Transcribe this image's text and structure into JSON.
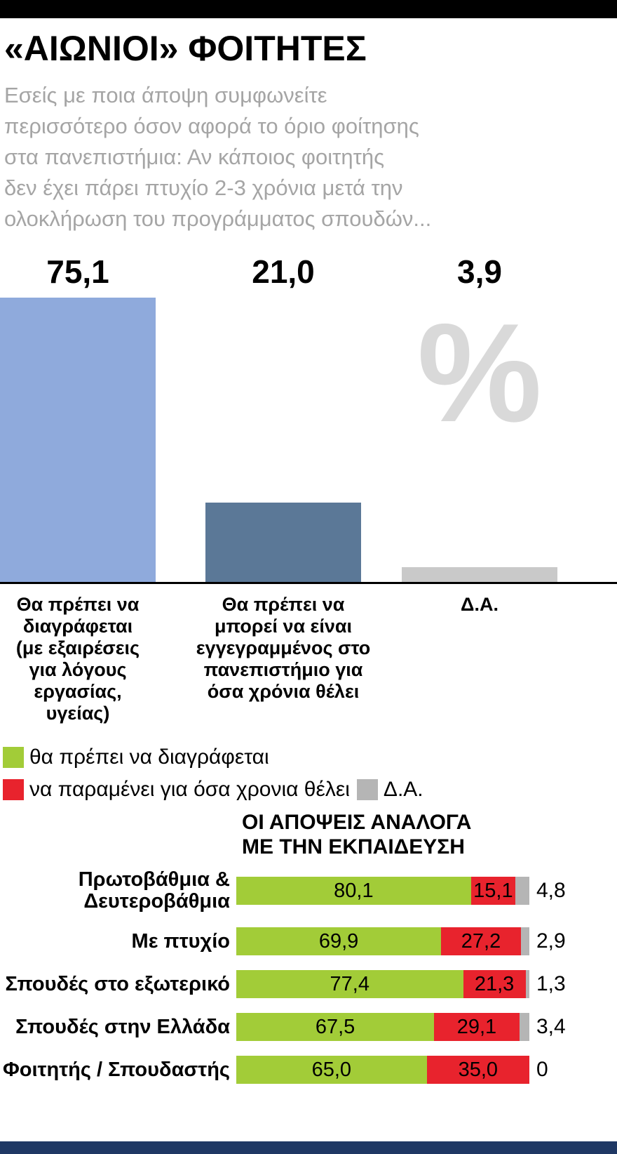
{
  "header": {
    "title": "«ΑΙΩΝΙΟΙ» ΦΟΙΤΗΤΕΣ",
    "question_lines": [
      "Εσείς με ποια άποψη συμφωνείτε",
      "περισσότερο όσον αφορά το όριο φοίτησης",
      "στα πανεπιστήμια: Αν κάποιος φοιτητής",
      "δεν έχει πάρει πτυχίο 2-3 χρόνια μετά την",
      "ολοκλήρωση του προγράμματος σπουδών..."
    ]
  },
  "colors": {
    "bar_blue_light": "#8faadc",
    "bar_blue_dark": "#5b7897",
    "bar_gray": "#c9c9c9",
    "green": "#a2cc38",
    "red": "#e8232d",
    "legend_gray": "#b5b5b5",
    "footer_navy": "#1f3864",
    "watermark_gray": "#d9d9d9"
  },
  "chart_data": [
    {
      "type": "bar",
      "unit": "%",
      "categories": [
        "Θα πρέπει να διαγράφεται (με εξαιρέσεις για λόγους εργασίας, υγείας)",
        "Θα πρέπει να μπορεί να είναι εγγεγραμμένος στο πανεπιστήμιο για όσα χρόνια θέλει",
        "Δ.Α."
      ],
      "categories_lines": [
        [
          "Θα πρέπει να",
          "διαγράφεται",
          "(με εξαιρέσεις",
          "για λόγους",
          "εργασίας,",
          "υγείας)"
        ],
        [
          "Θα πρέπει να",
          "μπορεί να είναι",
          "εγγεγραμμένος στο",
          "πανεπιστήμιο για",
          "όσα χρόνια θέλει"
        ],
        [
          "Δ.Α."
        ]
      ],
      "values": [
        75.1,
        21.0,
        3.9
      ],
      "value_labels": [
        "75,1",
        "21,0",
        "3,9"
      ],
      "colors": [
        "#8faadc",
        "#5b7897",
        "#c9c9c9"
      ],
      "ylim": [
        0,
        75.1
      ]
    },
    {
      "type": "bar",
      "orientation": "horizontal_stacked",
      "title_line1": "ΟΙ ΑΠΟΨΕΙΣ ΑΝΑΛΟΓΑ",
      "title_line2": "ΜΕ ΤΗΝ ΕΚΠΑΙΔΕΥΣΗ",
      "categories": [
        "Πρωτοβάθμια & Δευτεροβάθμια",
        "Με πτυχίο",
        "Σπουδές στο εξωτερικό",
        "Σπουδές στην Ελλάδα",
        "Φοιτητής / Σπουδαστής"
      ],
      "series": [
        {
          "name": "θα πρέπει να διαγράφεται",
          "color": "#a2cc38",
          "values": [
            80.1,
            69.9,
            77.4,
            67.5,
            65.0
          ],
          "value_labels": [
            "80,1",
            "69,9",
            "77,4",
            "67,5",
            "65,0"
          ]
        },
        {
          "name": "να παραμένει για όσα χρονια θέλει",
          "color": "#e8232d",
          "values": [
            15.1,
            27.2,
            21.3,
            29.1,
            35.0
          ],
          "value_labels": [
            "15,1",
            "27,2",
            "21,3",
            "29,1",
            "35,0"
          ]
        },
        {
          "name": "Δ.Α.",
          "color": "#b5b5b5",
          "values": [
            4.8,
            2.9,
            1.3,
            3.4,
            0
          ],
          "value_labels": [
            "4,8",
            "2,9",
            "1,3",
            "3,4",
            "0"
          ],
          "labels_outside": true
        }
      ],
      "xlim": [
        0,
        100
      ]
    }
  ],
  "legend": {
    "items": [
      {
        "label": "θα πρέπει να διαγράφεται",
        "color": "#a2cc38"
      },
      {
        "label": "να παραμένει για όσα χρονια θέλει",
        "color": "#e8232d"
      },
      {
        "label": "Δ.Α.",
        "color": "#b5b5b5"
      }
    ]
  }
}
